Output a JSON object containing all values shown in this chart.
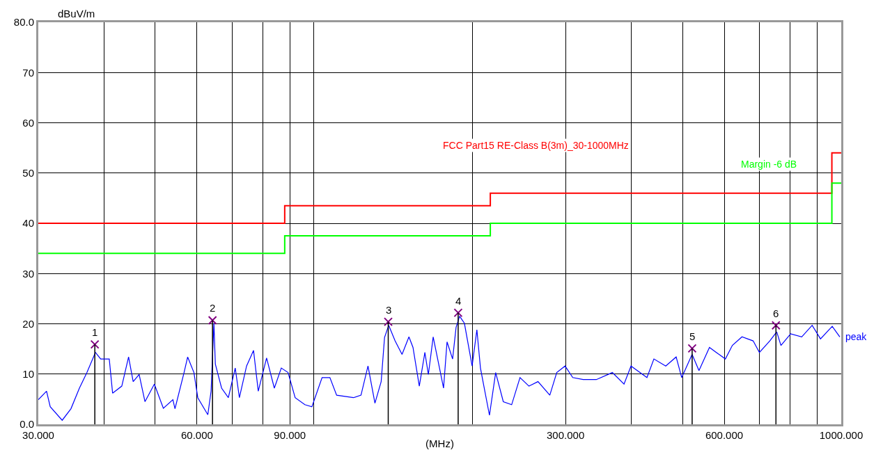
{
  "chart_data": {
    "type": "line",
    "xlabel": "(MHz)",
    "ylabel": "dBuV/m",
    "log": "x",
    "grid": true,
    "legend": false,
    "xlim": [
      30,
      1000
    ],
    "ylim": [
      0,
      80
    ],
    "xticks": [
      {
        "value": 30,
        "label": "30.000"
      },
      {
        "value": 40,
        "label": null
      },
      {
        "value": 50,
        "label": null
      },
      {
        "value": 60,
        "label": "60.000"
      },
      {
        "value": 70,
        "label": null
      },
      {
        "value": 80,
        "label": null
      },
      {
        "value": 90,
        "label": "90.000"
      },
      {
        "value": 100,
        "label": null
      },
      {
        "value": 200,
        "label": null
      },
      {
        "value": 300,
        "label": "300.000"
      },
      {
        "value": 400,
        "label": null
      },
      {
        "value": 500,
        "label": null
      },
      {
        "value": 600,
        "label": "600.000"
      },
      {
        "value": 700,
        "label": null
      },
      {
        "value": 800,
        "label": null
      },
      {
        "value": 900,
        "label": null
      },
      {
        "value": 1000,
        "label": "1000.000"
      }
    ],
    "yticks": [
      {
        "value": 0,
        "label": "0.0"
      },
      10,
      20,
      30,
      40,
      50,
      60,
      70,
      {
        "value": 80,
        "label": "80.0"
      }
    ],
    "series": [
      {
        "name": "FCC Part15 RE-Class B(3m)_30-1000MHz",
        "type": "step",
        "color": "#ff0000",
        "x": [
          30,
          88,
          216,
          960,
          1000
        ],
        "values": [
          40,
          43.5,
          46,
          54,
          54
        ]
      },
      {
        "name": "Margin -6 dB",
        "type": "step",
        "color": "#00ff00",
        "x": [
          30,
          88,
          216,
          960,
          1000
        ],
        "values": [
          34,
          37.5,
          40,
          48,
          48
        ]
      },
      {
        "name": "peak",
        "color": "#0000ff",
        "x": [
          30.0,
          31.1,
          31.6,
          33.3,
          34.6,
          35.9,
          37.1,
          38.5,
          39.4,
          40.9,
          41.5,
          43.2,
          44.5,
          45.4,
          46.6,
          47.8,
          49.8,
          51.8,
          54.0,
          54.5,
          56.7,
          57.6,
          59.2,
          60.2,
          62.9,
          63.8,
          64.6,
          65.0,
          66.8,
          68.8,
          70.9,
          72.2,
          74.5,
          76.8,
          78.4,
          81.3,
          84.1,
          86.7,
          89.3,
          92.1,
          96.1,
          99.1,
          103.6,
          107.2,
          110.4,
          118.8,
          122.8,
          126.6,
          130.5,
          134.1,
          136.1,
          138.6,
          142.5,
          146.9,
          151.4,
          154.1,
          158.4,
          162.3,
          164.8,
          168.3,
          176.1,
          178.8,
          183.2,
          186.0,
          188.9,
          192.9,
          197.7,
          199.5,
          203.7,
          206.9,
          210.0,
          215.2,
          221.1,
          228.6,
          237.1,
          245.9,
          255.7,
          266.0,
          280.1,
          288.7,
          299.4,
          309.6,
          324.0,
          343.2,
          368.1,
          387.3,
          399.3,
          428.1,
          441.3,
          464.7,
          486.3,
          498.3,
          521.4,
          537.3,
          562.5,
          579.6,
          603.0,
          621.6,
          648.3,
          680.7,
          699.6,
          732.0,
          754.5,
          768.6,
          801.9,
          841.5,
          880.8,
          913.5,
          961.5,
          993.9
        ],
        "values": [
          4.9,
          6.6,
          3.5,
          0.8,
          3.1,
          7.2,
          10.3,
          14.3,
          13.0,
          13.0,
          6.2,
          7.6,
          13.4,
          8.5,
          9.9,
          4.5,
          8.0,
          3.2,
          4.9,
          3.1,
          10.3,
          13.4,
          10.3,
          5.3,
          1.9,
          6.6,
          20.1,
          12.0,
          7.2,
          5.3,
          11.2,
          5.3,
          11.6,
          14.7,
          6.6,
          13.2,
          7.2,
          11.2,
          10.3,
          5.3,
          3.9,
          3.5,
          9.3,
          9.3,
          5.8,
          5.3,
          5.8,
          11.6,
          4.2,
          8.5,
          17.3,
          19.7,
          16.6,
          13.9,
          17.4,
          15.3,
          7.6,
          14.3,
          9.9,
          17.4,
          7.2,
          16.4,
          13.0,
          19.3,
          21.5,
          20.1,
          13.9,
          11.6,
          18.8,
          11.2,
          7.6,
          1.8,
          10.3,
          4.5,
          3.9,
          9.3,
          7.6,
          8.5,
          5.8,
          10.3,
          11.6,
          9.3,
          8.9,
          8.9,
          10.3,
          8.0,
          11.6,
          9.3,
          13.0,
          11.6,
          13.4,
          9.3,
          13.9,
          10.7,
          15.3,
          14.3,
          13.0,
          15.7,
          17.4,
          16.6,
          14.3,
          16.6,
          18.4,
          15.7,
          18.0,
          17.4,
          19.7,
          17.0,
          19.5,
          17.4
        ]
      },
      {
        "type": "lollipop",
        "color": "#800080",
        "marker": "cross",
        "x": [
          38.4,
          64.2,
          138.3,
          187.7,
          521.5,
          752.0
        ],
        "values": [
          15.9,
          20.7,
          20.4,
          22.2,
          15.1,
          19.7
        ]
      }
    ],
    "annotations": [
      {
        "text": "1",
        "x": 38.4,
        "y": 15.9
      },
      {
        "text": "2",
        "x": 64.2,
        "y": 20.7
      },
      {
        "text": "3",
        "x": 138.3,
        "y": 20.4
      },
      {
        "text": "4",
        "x": 187.7,
        "y": 22.2
      },
      {
        "text": "5",
        "x": 521.5,
        "y": 15.1
      },
      {
        "text": "6",
        "x": 752.0,
        "y": 19.7
      }
    ]
  }
}
